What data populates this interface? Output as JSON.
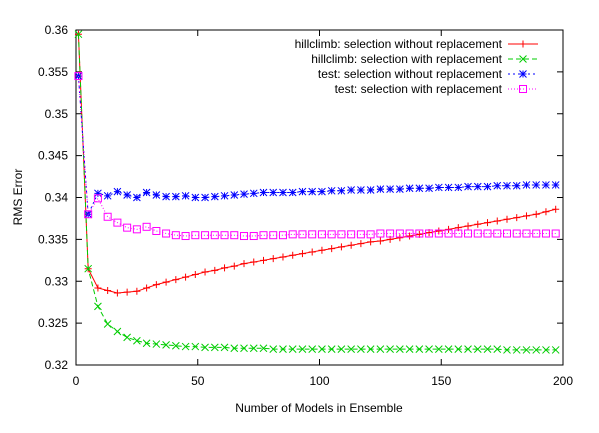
{
  "chart_data": {
    "type": "line",
    "title": "",
    "xlabel": "Number of Models in Ensemble",
    "ylabel": "RMS Error",
    "xlim": [
      0,
      200
    ],
    "ylim": [
      0.32,
      0.36
    ],
    "x_ticks": [
      0,
      50,
      100,
      150,
      200
    ],
    "x_tick_labels": [
      "0",
      "50",
      "100",
      "150",
      "200"
    ],
    "y_ticks": [
      0.32,
      0.325,
      0.33,
      0.335,
      0.34,
      0.345,
      0.35,
      0.355,
      0.36
    ],
    "y_tick_labels": [
      "0.32",
      "0.325",
      "0.33",
      "0.335",
      "0.34",
      "0.345",
      "0.35",
      "0.355",
      "0.36"
    ],
    "grid": false,
    "legend_position": "top-right",
    "x": [
      1,
      5,
      9,
      13,
      17,
      21,
      25,
      29,
      33,
      37,
      41,
      45,
      49,
      53,
      57,
      61,
      65,
      69,
      73,
      77,
      81,
      85,
      89,
      93,
      97,
      101,
      105,
      109,
      113,
      117,
      121,
      125,
      129,
      133,
      137,
      141,
      145,
      149,
      153,
      157,
      161,
      165,
      169,
      173,
      177,
      181,
      185,
      189,
      193,
      197
    ],
    "series": [
      {
        "name": "hillclimb: selection without replacement",
        "color": "#ff0000",
        "marker": "plus",
        "values": [
          0.3595,
          0.3315,
          0.3292,
          0.3289,
          0.3286,
          0.3287,
          0.3288,
          0.3292,
          0.3296,
          0.3299,
          0.3302,
          0.3305,
          0.3308,
          0.3311,
          0.3313,
          0.3316,
          0.3318,
          0.3321,
          0.3323,
          0.3325,
          0.3327,
          0.3329,
          0.3331,
          0.3333,
          0.3335,
          0.3337,
          0.3339,
          0.3341,
          0.3343,
          0.3345,
          0.3347,
          0.3348,
          0.335,
          0.3352,
          0.3354,
          0.3356,
          0.3358,
          0.336,
          0.3362,
          0.3364,
          0.3366,
          0.3368,
          0.337,
          0.3372,
          0.3374,
          0.3376,
          0.3378,
          0.338,
          0.3383,
          0.3386
        ]
      },
      {
        "name": "hillclimb: selection with replacement",
        "color": "#00cc00",
        "marker": "x",
        "values": [
          0.3595,
          0.3315,
          0.327,
          0.3249,
          0.324,
          0.3233,
          0.3229,
          0.3226,
          0.3225,
          0.3224,
          0.3223,
          0.3222,
          0.3222,
          0.3221,
          0.3221,
          0.3221,
          0.322,
          0.322,
          0.322,
          0.322,
          0.3219,
          0.3219,
          0.3219,
          0.3219,
          0.3219,
          0.3219,
          0.3219,
          0.3219,
          0.3219,
          0.3219,
          0.3219,
          0.3219,
          0.3219,
          0.3219,
          0.3219,
          0.3219,
          0.3219,
          0.3219,
          0.3219,
          0.3219,
          0.3219,
          0.3219,
          0.3219,
          0.3219,
          0.3218,
          0.3218,
          0.3218,
          0.3218,
          0.3218,
          0.3218
        ]
      },
      {
        "name": "test: selection without replacement",
        "color": "#0000ff",
        "marker": "star",
        "values": [
          0.3545,
          0.338,
          0.3405,
          0.3402,
          0.3407,
          0.3403,
          0.34,
          0.3406,
          0.3403,
          0.3401,
          0.3401,
          0.3402,
          0.34,
          0.34,
          0.3401,
          0.3402,
          0.3403,
          0.3404,
          0.3405,
          0.3406,
          0.3406,
          0.3406,
          0.3406,
          0.3407,
          0.3407,
          0.3407,
          0.3408,
          0.3408,
          0.3409,
          0.3409,
          0.3409,
          0.341,
          0.341,
          0.341,
          0.3411,
          0.3411,
          0.3411,
          0.3412,
          0.3412,
          0.3412,
          0.3413,
          0.3413,
          0.3413,
          0.3414,
          0.3414,
          0.3414,
          0.3415,
          0.3415,
          0.3415,
          0.3415
        ]
      },
      {
        "name": "test: selection with replacement",
        "color": "#ff00ff",
        "marker": "square",
        "values": [
          0.3545,
          0.338,
          0.3399,
          0.3377,
          0.337,
          0.3364,
          0.3362,
          0.3365,
          0.336,
          0.3357,
          0.3355,
          0.3354,
          0.3355,
          0.3355,
          0.3355,
          0.3355,
          0.3355,
          0.3354,
          0.3354,
          0.3355,
          0.3355,
          0.3355,
          0.3356,
          0.3356,
          0.3356,
          0.3356,
          0.3356,
          0.3356,
          0.3356,
          0.3356,
          0.3356,
          0.3357,
          0.3357,
          0.3357,
          0.3357,
          0.3357,
          0.3357,
          0.3357,
          0.3357,
          0.3357,
          0.3357,
          0.3357,
          0.3357,
          0.3357,
          0.3357,
          0.3357,
          0.3357,
          0.3357,
          0.3357,
          0.3357
        ]
      }
    ]
  }
}
